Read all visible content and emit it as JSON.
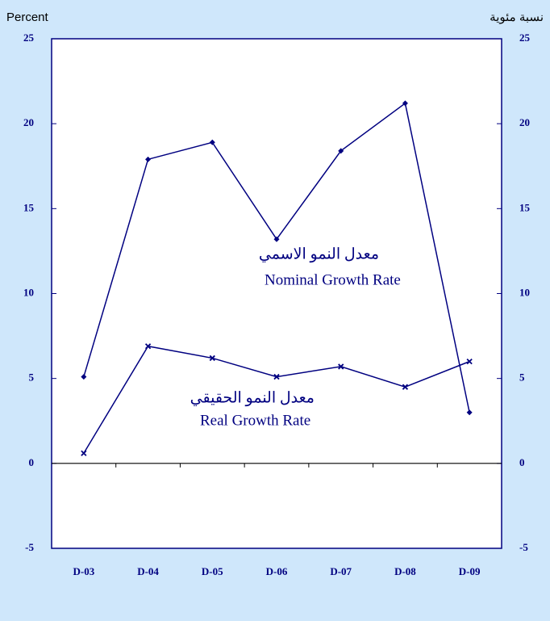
{
  "chart_data": {
    "type": "line",
    "y_label": "Percent",
    "y2_label": "نسبة مئوية",
    "categories": [
      "D-03",
      "D-04",
      "D-05",
      "D-06",
      "D-07",
      "D-08",
      "D-09"
    ],
    "series": [
      {
        "name": "Nominal Growth Rate",
        "color": "#000080",
        "marker": "diamond",
        "values": [
          5.1,
          17.9,
          18.9,
          13.2,
          18.4,
          21.2,
          3.0
        ]
      },
      {
        "name": "Real Growth Rate",
        "color": "#000080",
        "marker": "x",
        "values": [
          0.6,
          6.9,
          6.2,
          5.1,
          5.7,
          4.5,
          6.0
        ]
      }
    ],
    "annotations": [
      "معدل النمو الاسمي",
      "Nominal Growth Rate",
      "معدل النمو الحقيقي",
      "Real Growth Rate"
    ],
    "ylim": [
      -5,
      25
    ],
    "yticks": [
      -5,
      0,
      5,
      10,
      15,
      20,
      25
    ],
    "y2lim": [
      -5,
      25
    ],
    "y2ticks": [
      -5,
      0,
      5,
      10,
      15,
      20,
      25
    ]
  }
}
